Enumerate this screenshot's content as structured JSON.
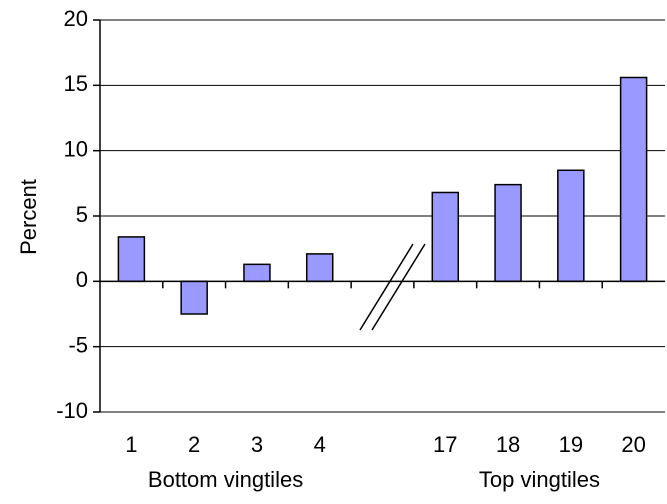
{
  "chart_data": {
    "type": "bar",
    "title": "",
    "xlabel": "",
    "ylabel": "Percent",
    "ylim": [
      -10,
      20
    ],
    "yticks": [
      "20",
      "15",
      "10",
      "5",
      "0",
      "-5",
      "-10"
    ],
    "grid": true,
    "legend": "none",
    "bar_color": "#9999FF",
    "bar_outline": "#000000",
    "categories": [
      "1",
      "2",
      "3",
      "4",
      "17",
      "18",
      "19",
      "20"
    ],
    "values": [
      3.4,
      -2.5,
      1.3,
      2.1,
      6.8,
      7.4,
      8.5,
      15.6
    ],
    "groups": [
      {
        "label": "Bottom vingtiles",
        "categories": [
          "1",
          "2",
          "3",
          "4"
        ]
      },
      {
        "label": "Top vingtiles",
        "categories": [
          "17",
          "18",
          "19",
          "20"
        ]
      }
    ],
    "axis_break": "between 4 and 17"
  }
}
